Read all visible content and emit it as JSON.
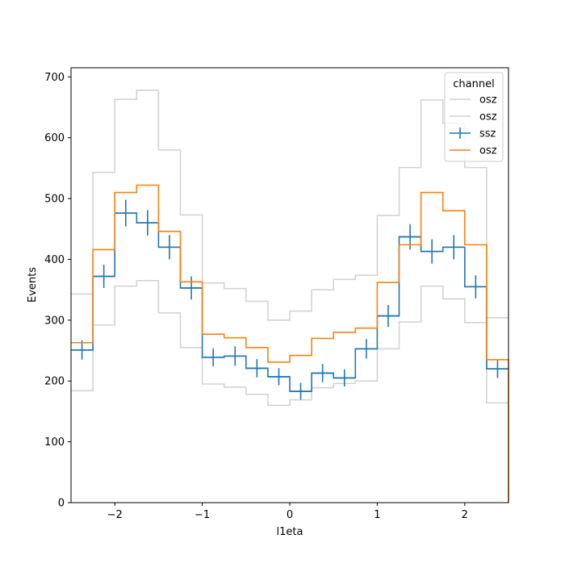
{
  "chart_data": {
    "type": "step",
    "title": "",
    "xlabel": "l1eta",
    "ylabel": "Events",
    "xlim": [
      -2.5,
      2.5
    ],
    "ylim": [
      0,
      715
    ],
    "grid": false,
    "x_ticks": [
      {
        "value": -2,
        "label": "−2"
      },
      {
        "value": -1,
        "label": "−1"
      },
      {
        "value": 0,
        "label": "0"
      },
      {
        "value": 1,
        "label": "1"
      },
      {
        "value": 2,
        "label": "2"
      }
    ],
    "y_ticks": [
      {
        "value": 0,
        "label": "0"
      },
      {
        "value": 100,
        "label": "100"
      },
      {
        "value": 200,
        "label": "200"
      },
      {
        "value": 300,
        "label": "300"
      },
      {
        "value": 400,
        "label": "400"
      },
      {
        "value": 500,
        "label": "500"
      },
      {
        "value": 600,
        "label": "600"
      },
      {
        "value": 700,
        "label": "700"
      }
    ],
    "bin_edges": [
      -2.5,
      -2.25,
      -2.0,
      -1.75,
      -1.5,
      -1.25,
      -1.0,
      -0.75,
      -0.5,
      -0.25,
      0.0,
      0.25,
      0.5,
      0.75,
      1.0,
      1.25,
      1.5,
      1.75,
      2.0,
      2.25,
      2.5
    ],
    "legend": {
      "title": "channel",
      "placement": "top-right"
    },
    "series": [
      {
        "name": "osz",
        "style": "step",
        "color": "#d3d3d3",
        "values": [
          343,
          543,
          663,
          678,
          580,
          473,
          361,
          352,
          331,
          300,
          315,
          350,
          367,
          374,
          472,
          551,
          662,
          624,
          551,
          304
        ]
      },
      {
        "name": "osz",
        "style": "step",
        "color": "#d3d3d3",
        "values": [
          184,
          292,
          356,
          365,
          312,
          255,
          195,
          190,
          178,
          160,
          169,
          189,
          196,
          200,
          253,
          297,
          356,
          335,
          296,
          164
        ]
      },
      {
        "name": "ssz",
        "style": "errorbar-step",
        "color": "#1f77b4",
        "values": [
          251,
          372,
          476,
          460,
          420,
          353,
          239,
          241,
          221,
          207,
          183,
          213,
          205,
          253,
          307,
          437,
          413,
          420,
          355,
          220
        ],
        "errors": [
          16,
          19,
          22,
          21,
          20,
          19,
          15,
          16,
          15,
          14,
          14,
          15,
          14,
          16,
          18,
          21,
          20,
          20,
          19,
          15
        ]
      },
      {
        "name": "osz",
        "style": "step",
        "color": "#ff7f0e",
        "values": [
          263,
          416,
          510,
          522,
          446,
          363,
          277,
          271,
          255,
          231,
          242,
          270,
          280,
          287,
          362,
          424,
          510,
          480,
          424,
          235
        ]
      }
    ]
  }
}
